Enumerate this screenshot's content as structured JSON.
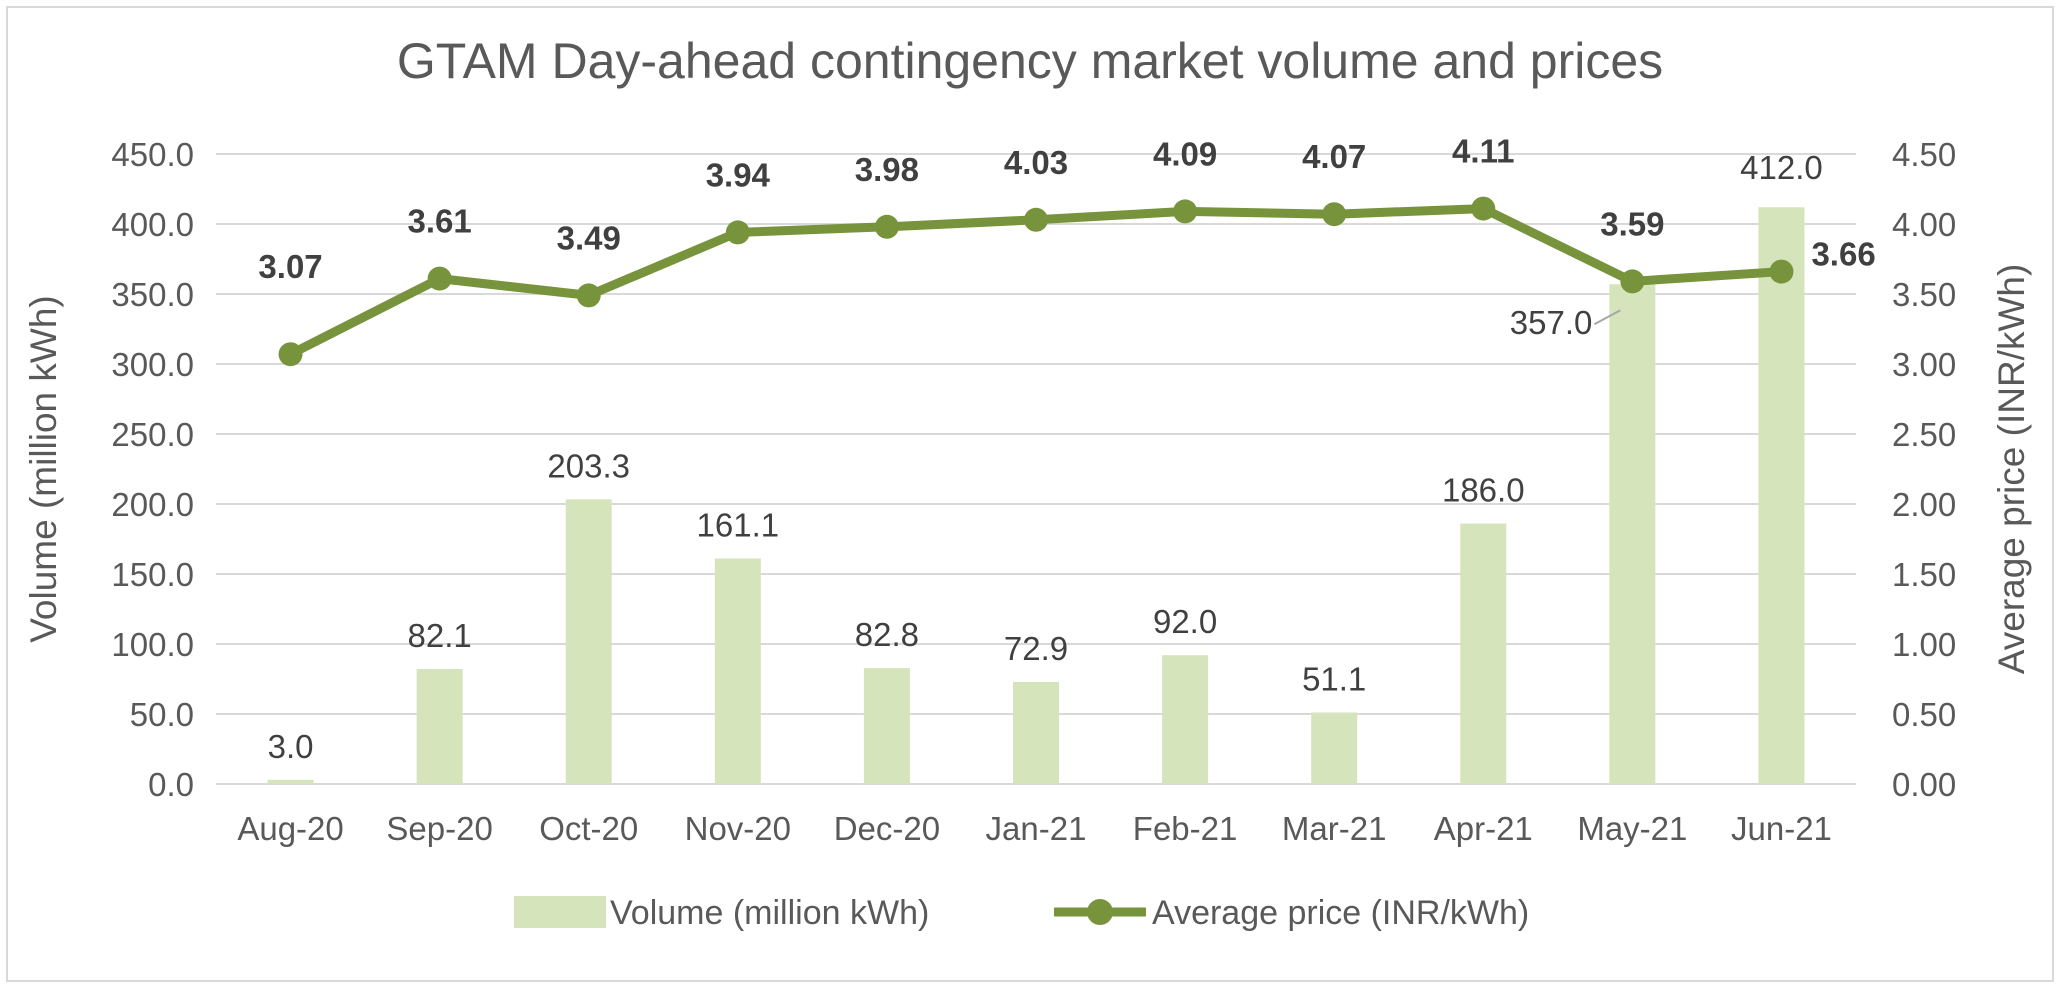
{
  "chart_data": {
    "type": "bar+line",
    "title": "GTAM Day-ahead contingency market volume and prices",
    "categories": [
      "Aug-20",
      "Sep-20",
      "Oct-20",
      "Nov-20",
      "Dec-20",
      "Jan-21",
      "Feb-21",
      "Mar-21",
      "Apr-21",
      "May-21",
      "Jun-21"
    ],
    "series": [
      {
        "name": "Volume (million kWh)",
        "type": "bar",
        "axis": "left",
        "values": [
          3.0,
          82.1,
          203.3,
          161.1,
          82.8,
          72.9,
          92.0,
          51.1,
          186.0,
          357.0,
          412.0
        ],
        "labels": [
          "3.0",
          "82.1",
          "203.3",
          "161.1",
          "82.8",
          "72.9",
          "92.0",
          "51.1",
          "186.0",
          "357.0",
          "412.0"
        ],
        "color": "#d6e4bc"
      },
      {
        "name": "Average price (INR/kWh)",
        "type": "line",
        "axis": "right",
        "values": [
          3.07,
          3.61,
          3.49,
          3.94,
          3.98,
          4.03,
          4.09,
          4.07,
          4.11,
          3.59,
          3.66
        ],
        "labels": [
          "3.07",
          "3.61",
          "3.49",
          "3.94",
          "3.98",
          "4.03",
          "4.09",
          "4.07",
          "4.11",
          "3.59",
          "3.66"
        ],
        "color": "#77933c"
      }
    ],
    "ylabel_left": "Volume (million kWh)",
    "ylabel_right": "Average price (INR/kWh)",
    "ylim_left": [
      0,
      450
    ],
    "ylim_right": [
      0,
      4.5
    ],
    "yticks_left": [
      "0.0",
      "50.0",
      "100.0",
      "150.0",
      "200.0",
      "250.0",
      "300.0",
      "350.0",
      "400.0",
      "450.0"
    ],
    "yticks_right": [
      "0.00",
      "0.50",
      "1.00",
      "1.50",
      "2.00",
      "2.50",
      "3.00",
      "3.50",
      "4.00",
      "4.50"
    ],
    "grid": true,
    "legend": "bottom"
  }
}
